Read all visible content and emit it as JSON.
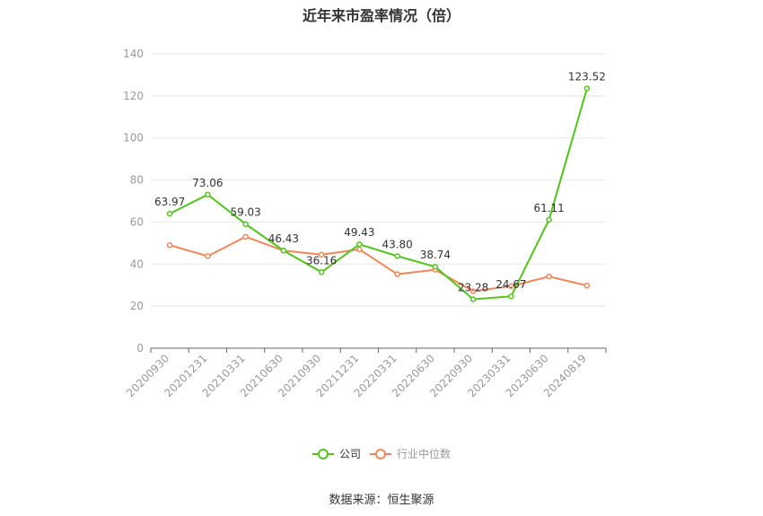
{
  "title": "近年来市盈率情况（倍）",
  "source": "数据来源：恒生聚源",
  "colors": {
    "company": "#52c41a",
    "industry": "#f0875a",
    "axis": "#999999",
    "grid": "#e8e8e8",
    "label": "#333333"
  },
  "legend": {
    "company": "公司",
    "industry": "行业中位数"
  },
  "chart_data": {
    "type": "line",
    "title": "近年来市盈率情况（倍）",
    "categories": [
      "20200930",
      "20201231",
      "20210331",
      "20210630",
      "20210930",
      "20211231",
      "20220331",
      "20220630",
      "20220930",
      "20230331",
      "20230630",
      "20240819"
    ],
    "ylim": [
      0,
      140
    ],
    "yticks": [
      0,
      20,
      40,
      60,
      80,
      100,
      120,
      140
    ],
    "grid": true,
    "legend_position": "bottom",
    "series": [
      {
        "name": "公司",
        "key": "company",
        "values": [
          63.97,
          73.06,
          59.03,
          46.43,
          36.16,
          49.43,
          43.8,
          38.74,
          23.28,
          24.67,
          61.11,
          123.52
        ],
        "labels": [
          "63.97",
          "73.06",
          "59.03",
          "46.43",
          "36.16",
          "49.43",
          "43.80",
          "38.74",
          "23.28",
          "24.67",
          "61.11",
          "123.52"
        ]
      },
      {
        "name": "行业中位数",
        "key": "industry",
        "values": [
          49,
          43.8,
          53,
          46.4,
          44.5,
          47,
          35.2,
          37.3,
          27.1,
          29.5,
          34.1,
          29.8
        ]
      }
    ]
  }
}
